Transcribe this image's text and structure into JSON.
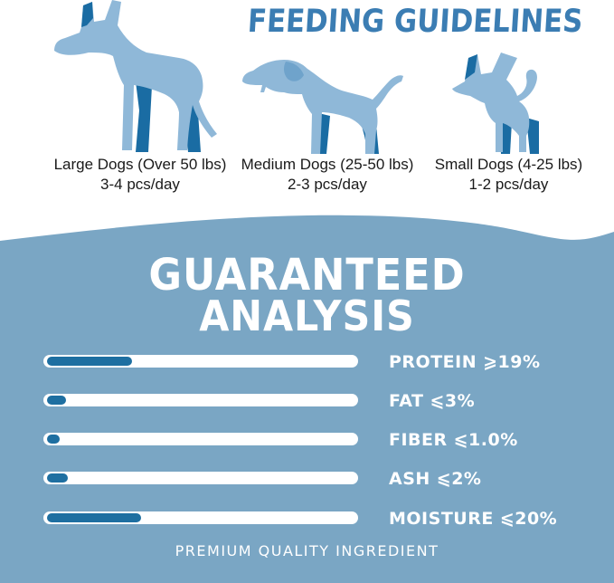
{
  "header": {
    "title": "FEEDING GUIDELINES"
  },
  "feeding_groups": [
    {
      "name": "Large Dogs (Over 50 lbs)",
      "amount": "3-4 pcs/day",
      "dog": "great-dane-silhouette"
    },
    {
      "name": "Medium Dogs (25-50 lbs)",
      "amount": "2-3 pcs/day",
      "dog": "labrador-silhouette"
    },
    {
      "name": "Small Dogs (4-25 lbs)",
      "amount": "1-2 pcs/day",
      "dog": "chihuahua-silhouette"
    }
  ],
  "analysis": {
    "title_line1": "GUARANTEED",
    "title_line2": "ANALYSIS",
    "nutrients": [
      {
        "label": "PROTEIN",
        "value": "⩾19%",
        "fill_pct": 27
      },
      {
        "label": "FAT",
        "value": "⩽3%",
        "fill_pct": 6
      },
      {
        "label": "FIBER",
        "value": "⩽1.0%",
        "fill_pct": 4
      },
      {
        "label": "ASH",
        "value": "⩽2%",
        "fill_pct": 6.5
      },
      {
        "label": "MOISTURE",
        "value": "⩽20%",
        "fill_pct": 30
      }
    ],
    "footer": "PREMIUM QUALITY INGREDIENT"
  },
  "chart_data": {
    "type": "bar",
    "orientation": "horizontal",
    "title": "GUARANTEED ANALYSIS",
    "categories": [
      "PROTEIN",
      "FAT",
      "FIBER",
      "ASH",
      "MOISTURE"
    ],
    "values": [
      19,
      3,
      1.0,
      2,
      20
    ],
    "value_labels": [
      "⩾19%",
      "⩽3%",
      "⩽1.0%",
      "⩽2%",
      "⩽20%"
    ],
    "bar_fill_percent_of_track": [
      27,
      6,
      4,
      6.5,
      30
    ],
    "grid": false,
    "legend": false
  },
  "colors": {
    "title_blue": "#3b7db3",
    "dog_light": "#8fb8d8",
    "dog_dark": "#1a6ca3",
    "section_background": "#7aa6c4",
    "bar_track": "#ffffff",
    "bar_fill": "#1e6fa1",
    "body_text": "#1a1a1a",
    "analysis_text": "#ffffff"
  }
}
